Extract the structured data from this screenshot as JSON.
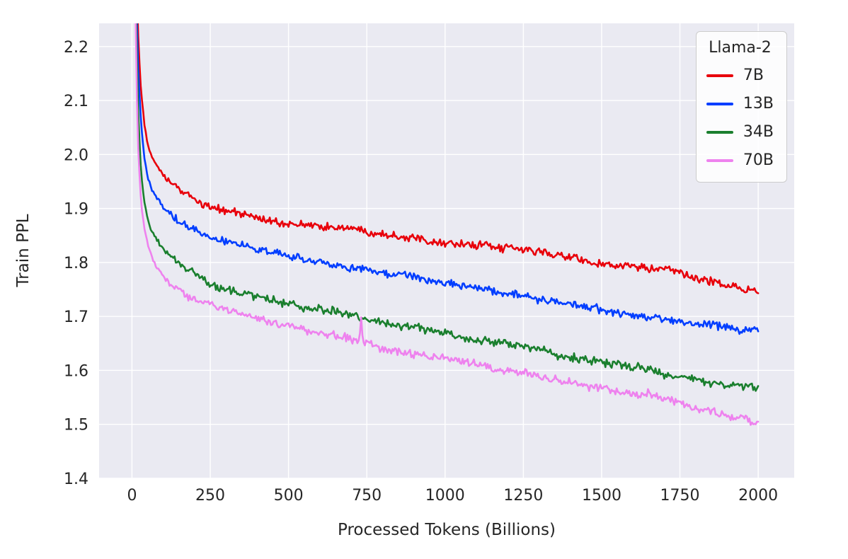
{
  "chart_data": {
    "type": "line",
    "title": "",
    "xlabel": "Processed Tokens (Billions)",
    "ylabel": "Train PPL",
    "xlim": [
      -105,
      2115
    ],
    "ylim": [
      1.4,
      2.243
    ],
    "x_ticks": [
      0,
      250,
      500,
      750,
      1000,
      1250,
      1500,
      1750,
      2000
    ],
    "y_ticks": [
      1.4,
      1.5,
      1.6,
      1.7,
      1.8,
      1.9,
      2.0,
      2.1,
      2.2
    ],
    "grid": true,
    "legend": {
      "title": "Llama-2",
      "position": "upper right",
      "entries": [
        "7B",
        "13B",
        "34B",
        "70B"
      ]
    },
    "style": {
      "plot_bg": "#eaeaf2",
      "grid_color": "#ffffff",
      "text_color": "#262626",
      "page_bg": "#ffffff",
      "line_width": 2.6
    },
    "series": [
      {
        "name": "7B",
        "color": "#e8000b",
        "keypoints": [
          [
            8,
            2.6
          ],
          [
            12,
            2.42
          ],
          [
            16,
            2.3
          ],
          [
            20,
            2.22
          ],
          [
            25,
            2.155
          ],
          [
            30,
            2.11
          ],
          [
            40,
            2.055
          ],
          [
            50,
            2.02
          ],
          [
            60,
            2.0
          ],
          [
            75,
            1.985
          ],
          [
            100,
            1.962
          ],
          [
            125,
            1.949
          ],
          [
            150,
            1.937
          ],
          [
            175,
            1.928
          ],
          [
            200,
            1.92
          ],
          [
            250,
            1.906
          ],
          [
            300,
            1.899
          ],
          [
            350,
            1.893
          ],
          [
            400,
            1.886
          ],
          [
            450,
            1.88
          ],
          [
            500,
            1.875
          ],
          [
            600,
            1.869
          ],
          [
            700,
            1.866
          ],
          [
            800,
            1.857
          ],
          [
            900,
            1.85
          ],
          [
            1000,
            1.841
          ],
          [
            1100,
            1.835
          ],
          [
            1200,
            1.826
          ],
          [
            1300,
            1.82
          ],
          [
            1400,
            1.81
          ],
          [
            1500,
            1.801
          ],
          [
            1600,
            1.792
          ],
          [
            1700,
            1.783
          ],
          [
            1800,
            1.77
          ],
          [
            1900,
            1.757
          ],
          [
            2000,
            1.745
          ]
        ]
      },
      {
        "name": "13B",
        "color": "#023eff",
        "keypoints": [
          [
            8,
            2.55
          ],
          [
            12,
            2.36
          ],
          [
            16,
            2.24
          ],
          [
            20,
            2.16
          ],
          [
            25,
            2.1
          ],
          [
            30,
            2.05
          ],
          [
            40,
            1.992
          ],
          [
            50,
            1.958
          ],
          [
            60,
            1.938
          ],
          [
            75,
            1.922
          ],
          [
            100,
            1.9
          ],
          [
            125,
            1.888
          ],
          [
            150,
            1.876
          ],
          [
            175,
            1.868
          ],
          [
            200,
            1.86
          ],
          [
            250,
            1.845
          ],
          [
            300,
            1.836
          ],
          [
            350,
            1.828
          ],
          [
            400,
            1.82
          ],
          [
            450,
            1.815
          ],
          [
            500,
            1.81
          ],
          [
            600,
            1.8
          ],
          [
            700,
            1.793
          ],
          [
            800,
            1.785
          ],
          [
            900,
            1.776
          ],
          [
            1000,
            1.766
          ],
          [
            1100,
            1.756
          ],
          [
            1200,
            1.746
          ],
          [
            1300,
            1.736
          ],
          [
            1400,
            1.726
          ],
          [
            1500,
            1.716
          ],
          [
            1600,
            1.706
          ],
          [
            1700,
            1.696
          ],
          [
            1800,
            1.686
          ],
          [
            1900,
            1.676
          ],
          [
            2000,
            1.668
          ]
        ]
      },
      {
        "name": "34B",
        "color": "#1a7f2e",
        "keypoints": [
          [
            8,
            2.5
          ],
          [
            12,
            2.3
          ],
          [
            16,
            2.17
          ],
          [
            20,
            2.08
          ],
          [
            25,
            2.01
          ],
          [
            30,
            1.96
          ],
          [
            40,
            1.91
          ],
          [
            50,
            1.88
          ],
          [
            60,
            1.862
          ],
          [
            75,
            1.845
          ],
          [
            100,
            1.825
          ],
          [
            125,
            1.812
          ],
          [
            150,
            1.8
          ],
          [
            175,
            1.79
          ],
          [
            200,
            1.781
          ],
          [
            250,
            1.765
          ],
          [
            300,
            1.752
          ],
          [
            350,
            1.742
          ],
          [
            400,
            1.733
          ],
          [
            450,
            1.726
          ],
          [
            500,
            1.72
          ],
          [
            600,
            1.71
          ],
          [
            700,
            1.7
          ],
          [
            800,
            1.688
          ],
          [
            900,
            1.676
          ],
          [
            1000,
            1.665
          ],
          [
            1100,
            1.655
          ],
          [
            1200,
            1.645
          ],
          [
            1300,
            1.635
          ],
          [
            1400,
            1.624
          ],
          [
            1500,
            1.614
          ],
          [
            1600,
            1.604
          ],
          [
            1700,
            1.594
          ],
          [
            1800,
            1.584
          ],
          [
            1900,
            1.575
          ],
          [
            2000,
            1.569
          ]
        ]
      },
      {
        "name": "70B",
        "color": "#ee82ee",
        "keypoints": [
          [
            8,
            2.45
          ],
          [
            12,
            2.24
          ],
          [
            16,
            2.1
          ],
          [
            20,
            2.01
          ],
          [
            25,
            1.95
          ],
          [
            30,
            1.905
          ],
          [
            40,
            1.862
          ],
          [
            50,
            1.835
          ],
          [
            60,
            1.815
          ],
          [
            75,
            1.795
          ],
          [
            100,
            1.775
          ],
          [
            125,
            1.762
          ],
          [
            150,
            1.752
          ],
          [
            175,
            1.742
          ],
          [
            200,
            1.734
          ],
          [
            250,
            1.72
          ],
          [
            300,
            1.71
          ],
          [
            350,
            1.7
          ],
          [
            400,
            1.691
          ],
          [
            450,
            1.685
          ],
          [
            500,
            1.679
          ],
          [
            600,
            1.666
          ],
          [
            700,
            1.656
          ],
          [
            726,
            1.654
          ],
          [
            732,
            1.702
          ],
          [
            738,
            1.652
          ],
          [
            800,
            1.644
          ],
          [
            900,
            1.634
          ],
          [
            1000,
            1.624
          ],
          [
            1100,
            1.614
          ],
          [
            1200,
            1.604
          ],
          [
            1300,
            1.594
          ],
          [
            1400,
            1.583
          ],
          [
            1500,
            1.57
          ],
          [
            1600,
            1.558
          ],
          [
            1700,
            1.545
          ],
          [
            1800,
            1.531
          ],
          [
            1900,
            1.516
          ],
          [
            2000,
            1.501
          ]
        ]
      }
    ]
  }
}
